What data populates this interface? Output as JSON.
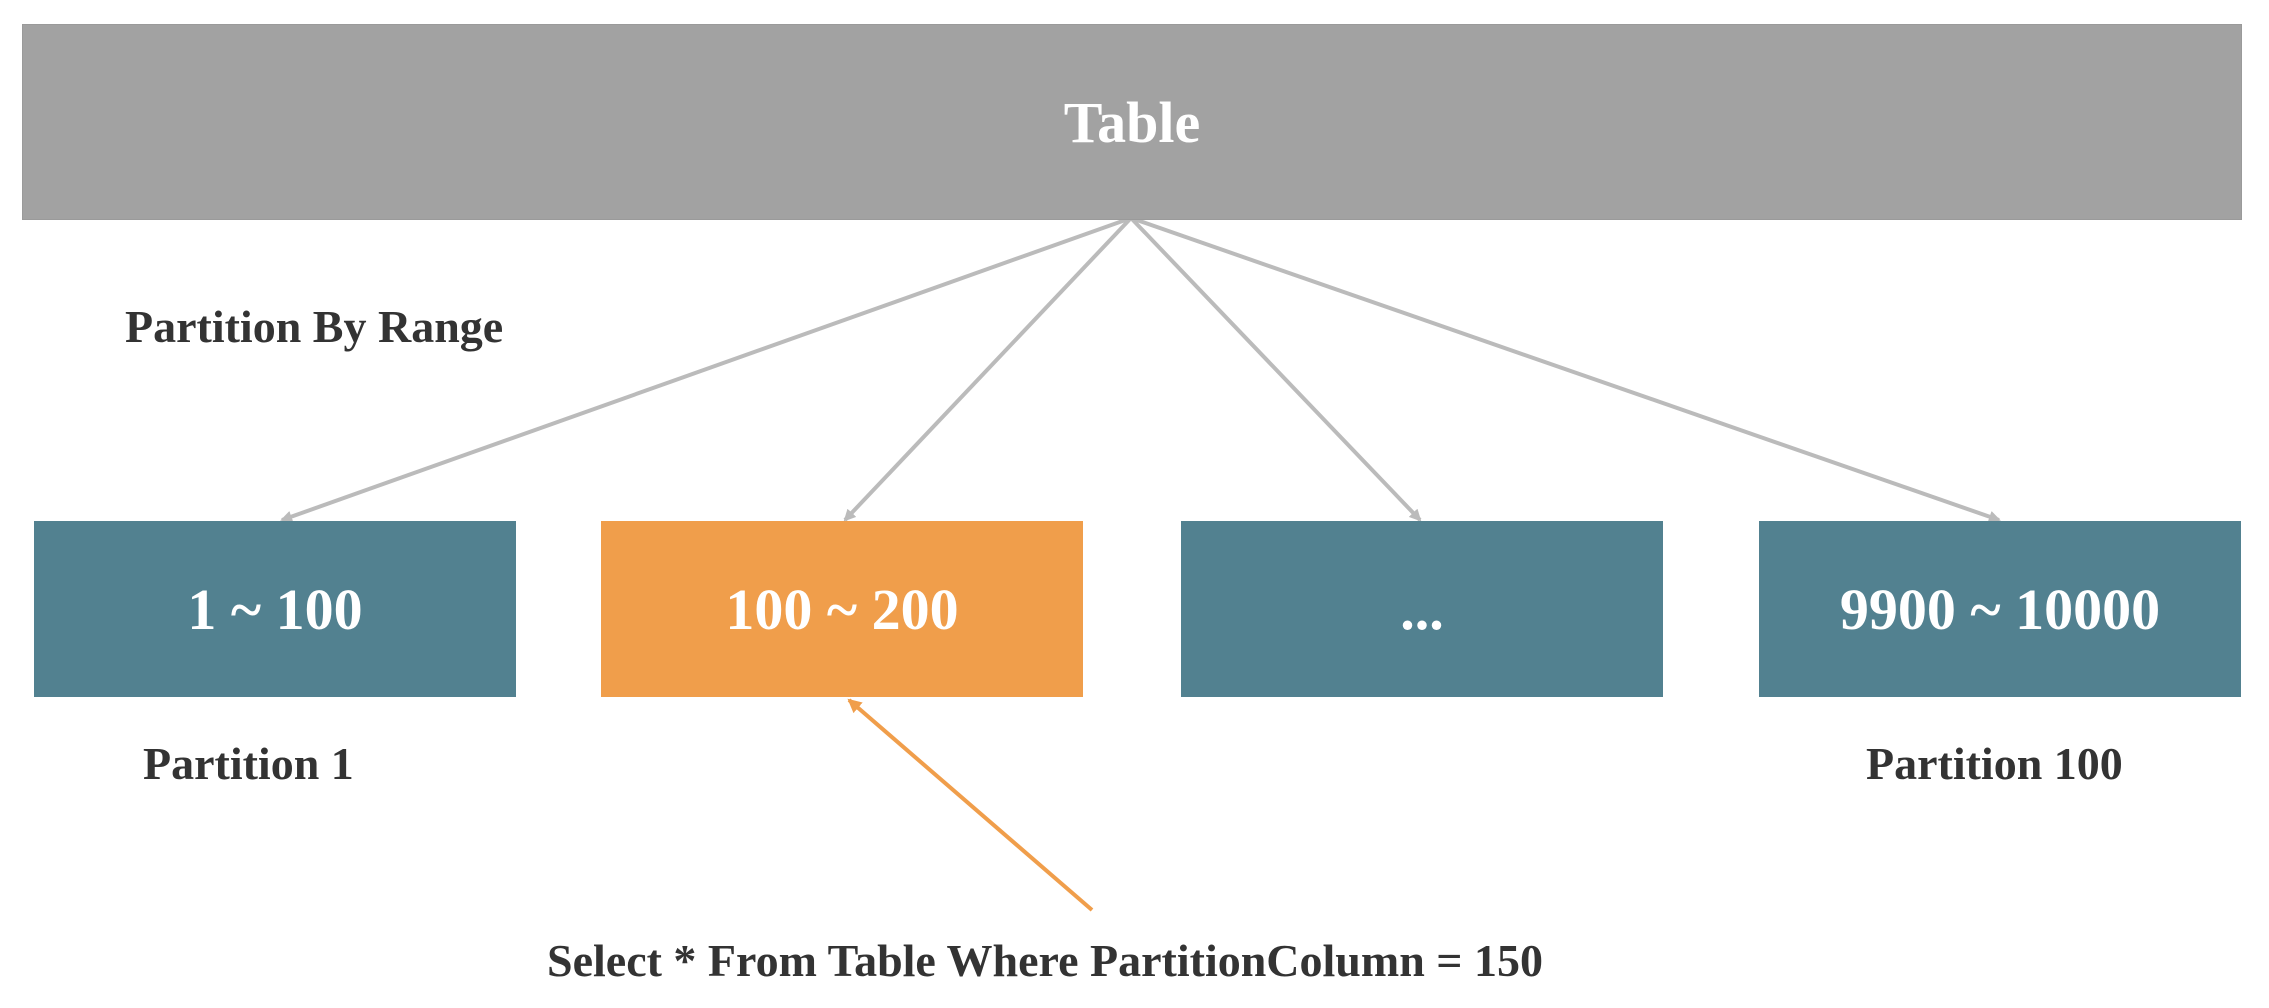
{
  "diagram": {
    "table_label": "Table",
    "partition_method": "Partition By Range",
    "partitions": [
      {
        "range": "1 ~ 100",
        "label": "Partition 1",
        "highlighted": false
      },
      {
        "range": "100 ~ 200",
        "label": "",
        "highlighted": true
      },
      {
        "range": "...",
        "label": "",
        "highlighted": false
      },
      {
        "range": "9900 ~ 10000",
        "label": "Partition 100",
        "highlighted": false
      }
    ],
    "query": "Select * From Table Where PartitionColumn = 150"
  },
  "colors": {
    "table": "#a2a2a2",
    "partition": "#528190",
    "highlight": "#f09e4b",
    "connector": "#bbbbbb",
    "text_dark": "#333333"
  }
}
